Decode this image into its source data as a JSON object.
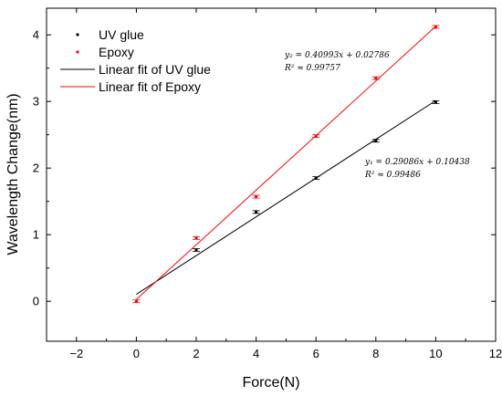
{
  "chart_data": {
    "type": "scatter",
    "xlabel": "Force(N)",
    "ylabel": "Wavelength Change(nm)",
    "xlim": [
      -3,
      12
    ],
    "ylim": [
      -0.6,
      4.4
    ],
    "x_ticks": [
      -2,
      0,
      2,
      4,
      6,
      8,
      10,
      12
    ],
    "y_ticks": [
      0,
      1,
      2,
      3,
      4
    ],
    "x_tick_labels": [
      "−2",
      "0",
      "2",
      "4",
      "6",
      "8",
      "10",
      "12"
    ],
    "y_tick_labels": [
      "0",
      "1",
      "2",
      "3",
      "4"
    ],
    "legend_position": "top-left",
    "series": [
      {
        "name": "UV glue",
        "kind": "points",
        "color": "#000000",
        "x": [
          2,
          4,
          6,
          8,
          10
        ],
        "y": [
          0.77,
          1.34,
          1.85,
          2.41,
          2.99
        ]
      },
      {
        "name": "Epoxy",
        "kind": "points",
        "color": "#ff0000",
        "x": [
          0,
          2,
          4,
          6,
          8,
          10
        ],
        "y": [
          0.0,
          0.95,
          1.57,
          2.48,
          3.35,
          4.12
        ]
      },
      {
        "name": "Linear fit of UV glue",
        "kind": "line",
        "color": "#000000",
        "slope": 0.29086,
        "intercept": 0.10438,
        "x_range": [
          0,
          10
        ]
      },
      {
        "name": "Linear fit of Epoxy",
        "kind": "line",
        "color": "#ff0000",
        "slope": 0.40993,
        "intercept": 0.02786,
        "x_range": [
          0,
          10
        ]
      }
    ],
    "annotations": {
      "uv_equation": "y₁ = 0.29086x + 0.10438",
      "uv_r2": "R² ≈ 0.99486",
      "epoxy_equation": "y₂ = 0.40993x + 0.02786",
      "epoxy_r2": "R² ≈ 0.99757"
    }
  }
}
